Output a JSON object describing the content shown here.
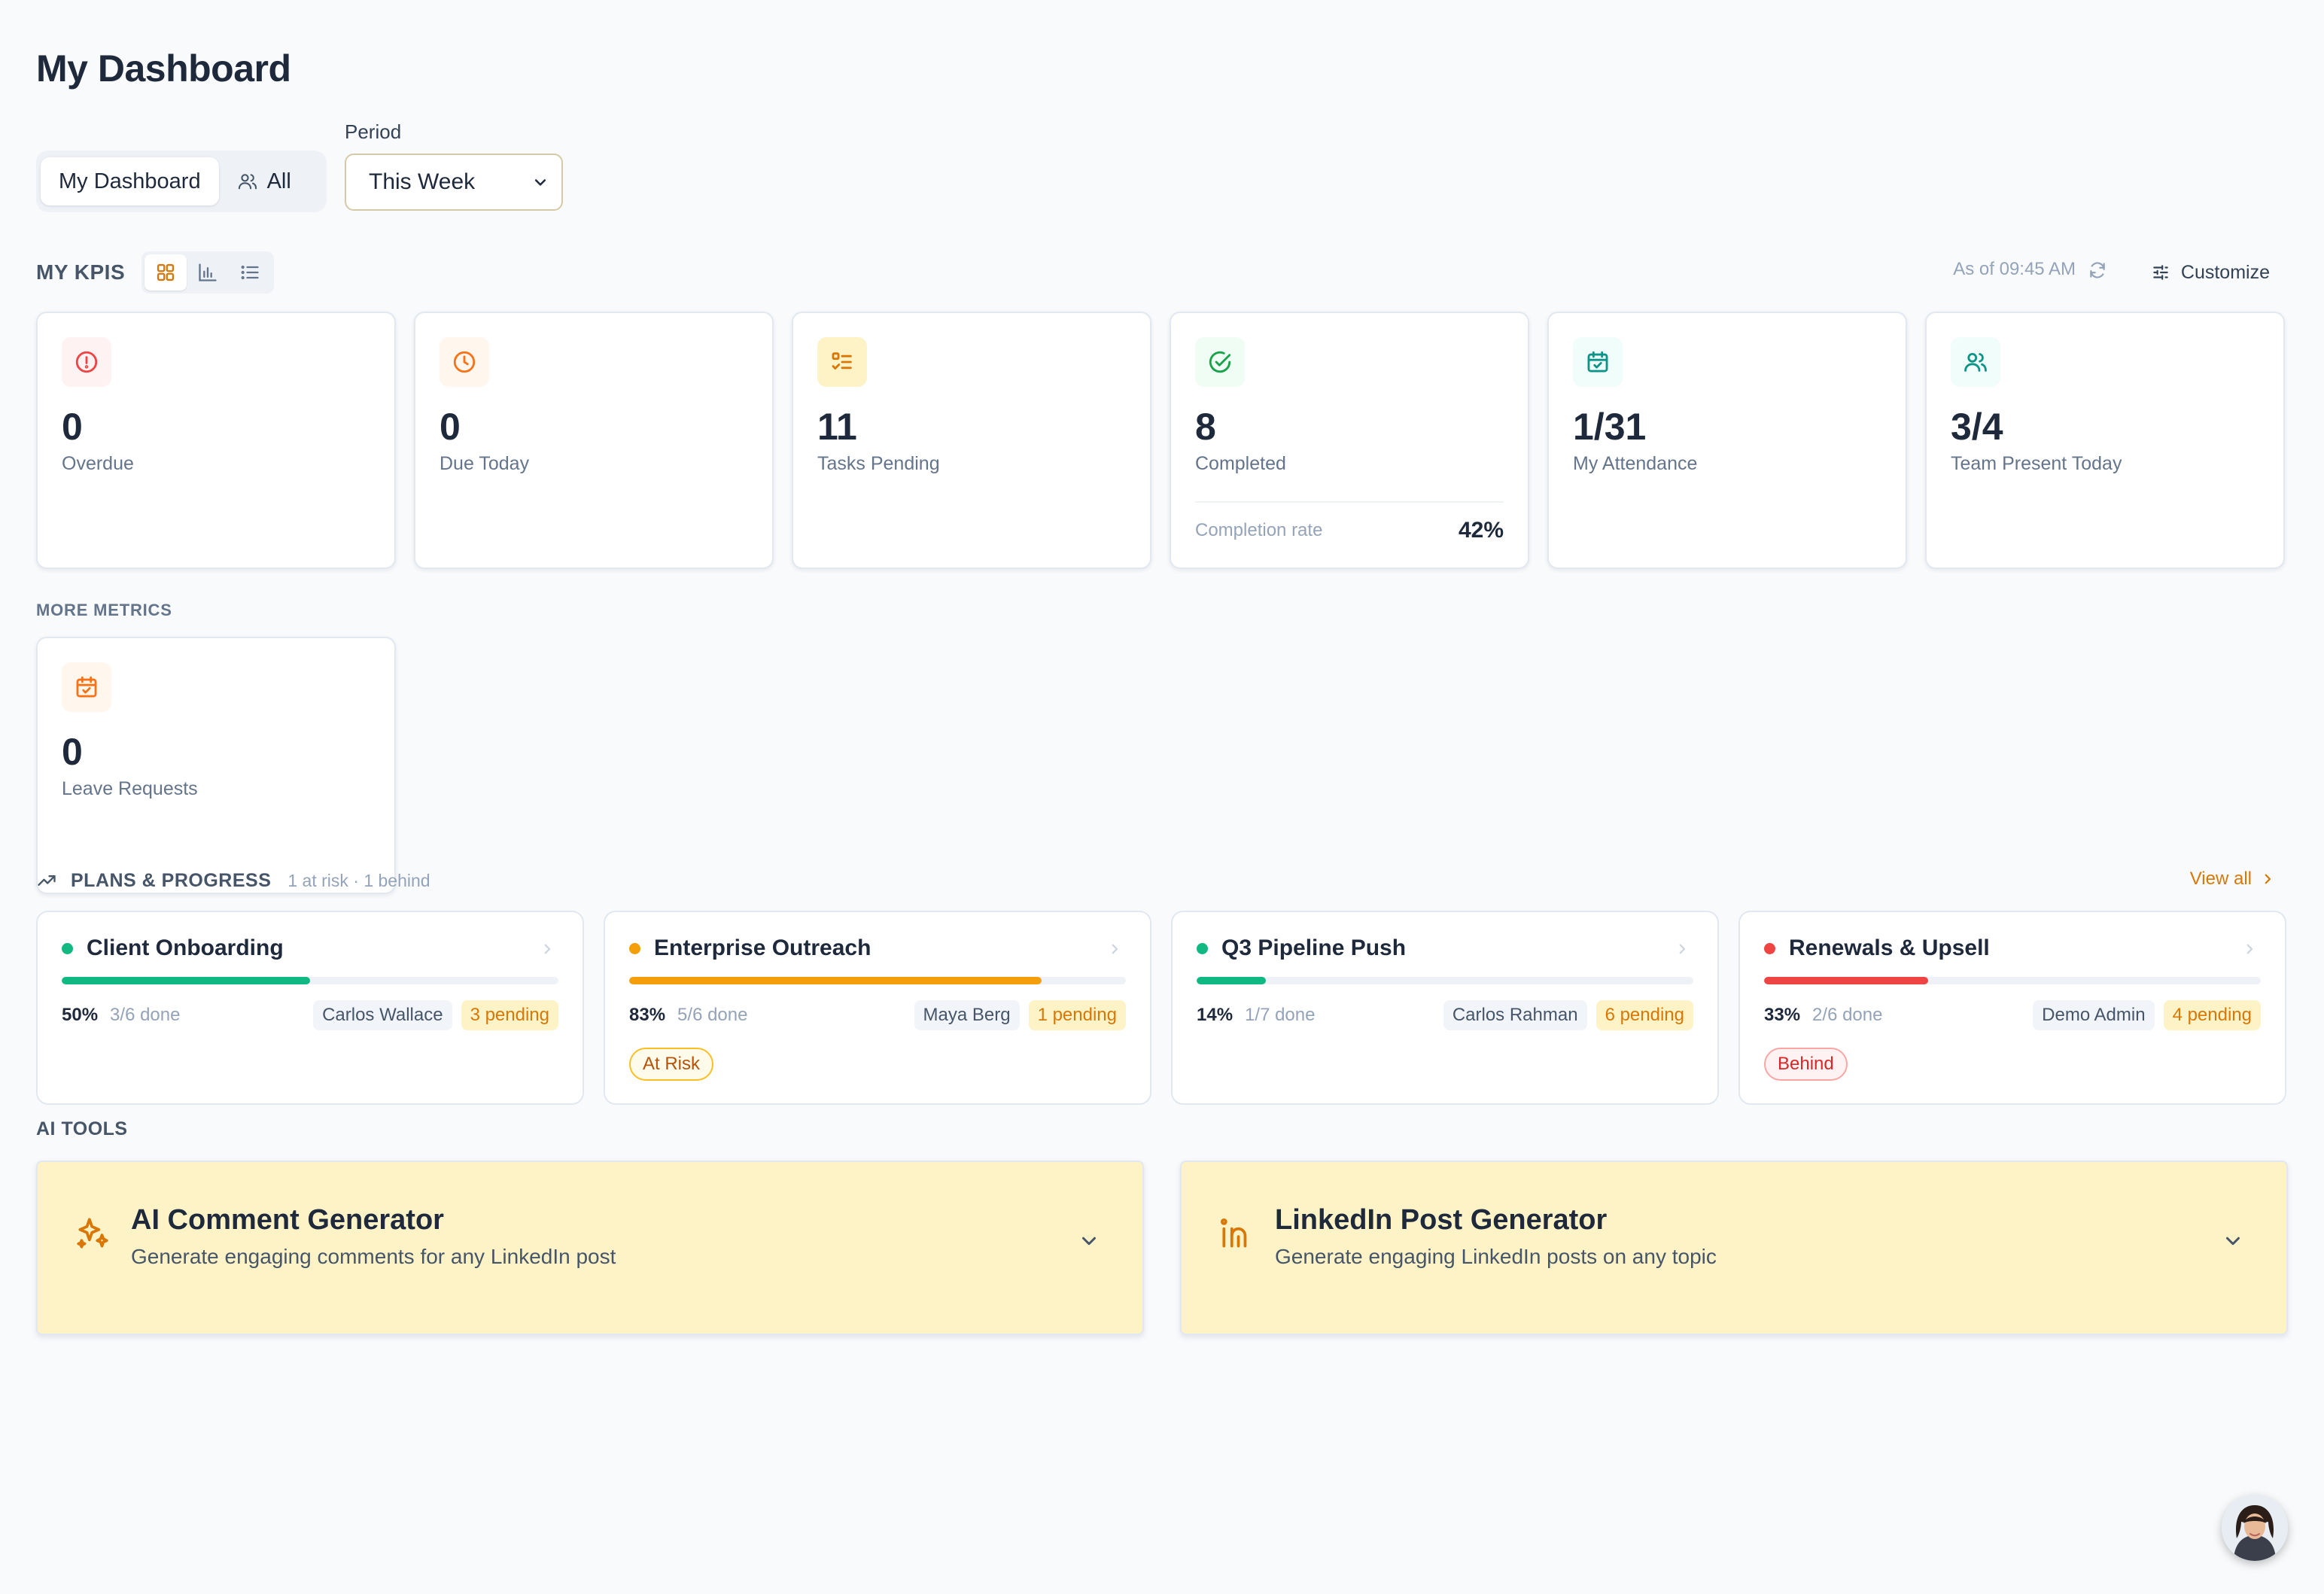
{
  "page": {
    "title": "My Dashboard"
  },
  "switcher": {
    "my_dashboard": "My Dashboard",
    "all": "All"
  },
  "period": {
    "label": "Period",
    "selected": "This Week"
  },
  "kpis": {
    "section_title": "MY KPIS",
    "as_of": "As of 09:45 AM",
    "customize_label": "Customize",
    "cards": [
      {
        "value": "0",
        "label": "Overdue",
        "icon": "alert-circle-icon",
        "color": "#ef4444",
        "bg": "#fef2f2"
      },
      {
        "value": "0",
        "label": "Due Today",
        "icon": "clock-icon",
        "color": "#f97316",
        "bg": "#fff7ed"
      },
      {
        "value": "11",
        "label": "Tasks Pending",
        "icon": "checklist-icon",
        "color": "#d97706",
        "bg": "#fef3c7"
      },
      {
        "value": "8",
        "label": "Completed",
        "icon": "check-circle-icon",
        "color": "#16a34a",
        "bg": "#f0fdf4",
        "sub_label": "Completion rate",
        "sub_value": "42%"
      },
      {
        "value": "1/31",
        "label": "My Attendance",
        "icon": "calendar-check-icon",
        "color": "#0d9488",
        "bg": "#f0fdfa"
      },
      {
        "value": "3/4",
        "label": "Team Present Today",
        "icon": "users-icon",
        "color": "#0d9488",
        "bg": "#f0fdfa"
      }
    ]
  },
  "more_metrics": {
    "section_title": "MORE METRICS",
    "cards": [
      {
        "value": "0",
        "label": "Leave Requests",
        "icon": "calendar-check-icon",
        "color": "#f97316",
        "bg": "#fff7ed"
      }
    ]
  },
  "plans": {
    "section_title": "PLANS & PROGRESS",
    "meta": "1 at risk · 1 behind",
    "view_all": "View all",
    "items": [
      {
        "name": "Client Onboarding",
        "color": "#10b981",
        "progress": 0.5,
        "pct": "50%",
        "done": "3/6 done",
        "owner": "Carlos Wallace",
        "pending": "3 pending",
        "badge": ""
      },
      {
        "name": "Enterprise Outreach",
        "color": "#f59e0b",
        "progress": 0.83,
        "pct": "83%",
        "done": "5/6 done",
        "owner": "Maya Berg",
        "pending": "1 pending",
        "badge": "At Risk"
      },
      {
        "name": "Q3 Pipeline Push",
        "color": "#10b981",
        "progress": 0.14,
        "pct": "14%",
        "done": "1/7 done",
        "owner": "Carlos Rahman",
        "pending": "6 pending",
        "badge": ""
      },
      {
        "name": "Renewals & Upsell",
        "color": "#ef4444",
        "progress": 0.33,
        "pct": "33%",
        "done": "2/6 done",
        "owner": "Demo Admin",
        "pending": "4 pending",
        "badge": "Behind"
      }
    ]
  },
  "ai_tools": {
    "section_title": "AI TOOLS",
    "items": [
      {
        "name": "AI Comment Generator",
        "desc": "Generate engaging comments for any LinkedIn post",
        "icon": "sparkles-icon"
      },
      {
        "name": "LinkedIn Post Generator",
        "desc": "Generate engaging LinkedIn posts on any topic",
        "icon": "linkedin-icon"
      }
    ]
  },
  "colors": {
    "accent": "#d97706",
    "text": "#1e293b",
    "muted": "#64748b"
  }
}
